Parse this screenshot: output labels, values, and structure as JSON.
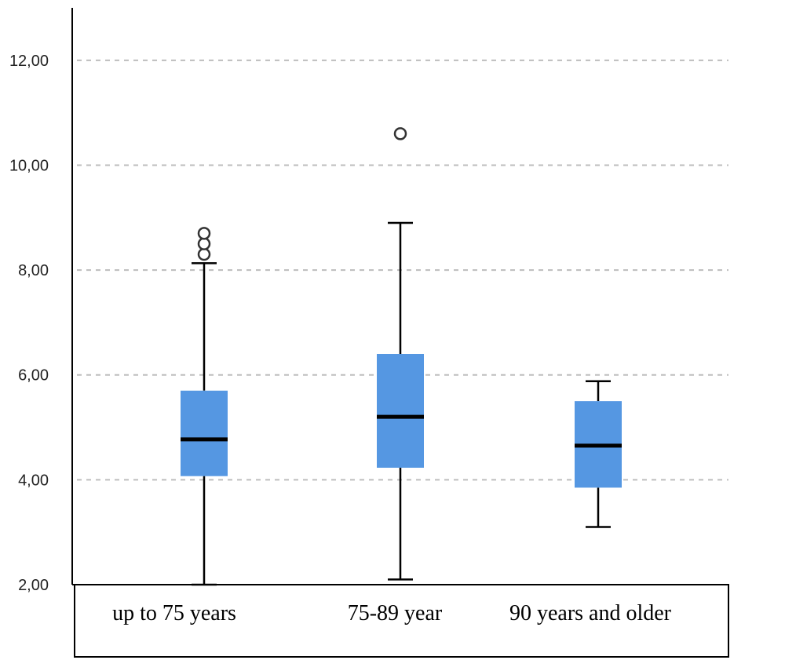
{
  "chart_data": {
    "type": "boxplot",
    "title": "",
    "xlabel": "",
    "ylabel": "",
    "ylim": [
      2.0,
      13.0
    ],
    "y_ticks": [
      {
        "value": 2,
        "label": "2,00"
      },
      {
        "value": 4,
        "label": "4,00"
      },
      {
        "value": 6,
        "label": "6,00"
      },
      {
        "value": 8,
        "label": "8,00"
      },
      {
        "value": 10,
        "label": "10,00"
      },
      {
        "value": 12,
        "label": "12,00"
      }
    ],
    "grid": true,
    "box_color": "#5597e2",
    "categories": [
      "up to 75 years",
      "75-89 year",
      "90 years and older"
    ],
    "boxes": [
      {
        "category": "up to 75 years",
        "min": 2.0,
        "q1": 4.07,
        "median": 4.77,
        "q3": 5.7,
        "max": 8.13,
        "outliers": [
          8.3,
          8.5,
          8.7
        ]
      },
      {
        "category": "75-89 year",
        "min": 2.1,
        "q1": 4.23,
        "median": 5.2,
        "q3": 6.4,
        "max": 8.9,
        "outliers": [
          10.6
        ]
      },
      {
        "category": "90 years and older",
        "min": 3.1,
        "q1": 3.85,
        "median": 4.65,
        "q3": 5.5,
        "max": 5.88,
        "outliers": []
      }
    ]
  }
}
